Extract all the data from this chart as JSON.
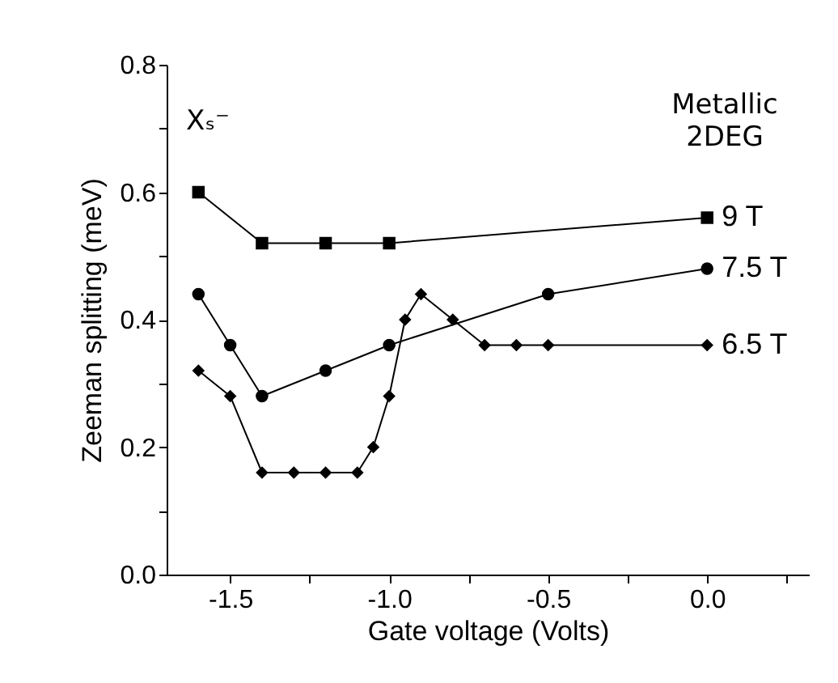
{
  "chart_data": {
    "type": "line",
    "xlabel": "Gate voltage (Volts)",
    "ylabel": "Zeeman splitting (meV)",
    "xlim": [
      -1.7,
      0.32
    ],
    "ylim": [
      0,
      0.8
    ],
    "xticks": [
      {
        "value": -1.5,
        "label": "-1.5"
      },
      {
        "value": -1.25,
        "label": null
      },
      {
        "value": -1.0,
        "label": "-1.0"
      },
      {
        "value": -0.75,
        "label": null
      },
      {
        "value": -0.5,
        "label": "-0.5"
      },
      {
        "value": -0.25,
        "label": null
      },
      {
        "value": 0,
        "label": "0.0"
      },
      {
        "value": 0.25,
        "label": null
      }
    ],
    "yticks": [
      {
        "value": 0,
        "label": "0.0"
      },
      {
        "value": 0.1,
        "label": null
      },
      {
        "value": 0.2,
        "label": "0.2"
      },
      {
        "value": 0.3,
        "label": null
      },
      {
        "value": 0.4,
        "label": "0.4"
      },
      {
        "value": 0.5,
        "label": null
      },
      {
        "value": 0.6,
        "label": "0.6"
      },
      {
        "value": 0.7,
        "label": null
      },
      {
        "value": 0.8,
        "label": "0.8"
      }
    ],
    "grid": false,
    "legend": false,
    "line_style": "solid",
    "series": [
      {
        "name": "9 T",
        "color": "#000000",
        "marker": "square",
        "x": [
          -1.6,
          -1.4,
          -1.2,
          -1.0,
          0.0
        ],
        "values": [
          0.6,
          0.52,
          0.52,
          0.52,
          0.56
        ]
      },
      {
        "name": "7.5 T",
        "color": "#000000",
        "marker": "circle",
        "x": [
          -1.6,
          -1.5,
          -1.4,
          -1.2,
          -1.0,
          -0.5,
          0.0
        ],
        "values": [
          0.44,
          0.36,
          0.28,
          0.32,
          0.36,
          0.44,
          0.48
        ]
      },
      {
        "name": "6.5 T",
        "color": "#000000",
        "marker": "diamond",
        "x": [
          -1.6,
          -1.5,
          -1.4,
          -1.3,
          -1.2,
          -1.1,
          -1.05,
          -1.0,
          -0.95,
          -0.9,
          -0.8,
          -0.7,
          -0.6,
          -0.5,
          0.0
        ],
        "values": [
          0.32,
          0.28,
          0.16,
          0.16,
          0.16,
          0.16,
          0.2,
          0.28,
          0.4,
          0.44,
          0.4,
          0.36,
          0.36,
          0.36,
          0.36
        ]
      }
    ],
    "annotations": [
      "Xₛ⁻",
      "Metallic\n2DEG"
    ]
  }
}
